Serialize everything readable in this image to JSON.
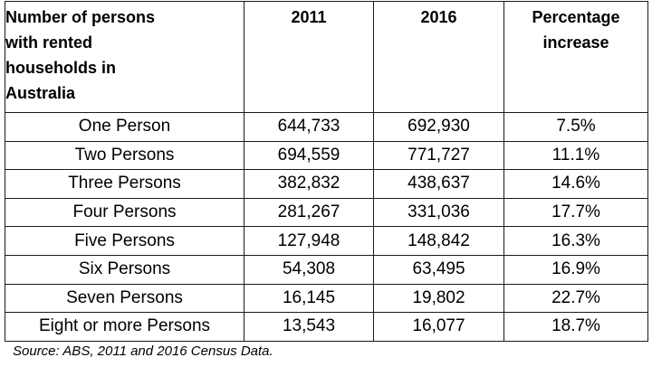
{
  "chart_data": {
    "type": "table",
    "columns": [
      [
        "Number of persons",
        "with rented",
        "households in",
        "Australia"
      ],
      [
        "2011"
      ],
      [
        "2016"
      ],
      [
        "Percentage",
        "increase"
      ]
    ],
    "rows": [
      {
        "label": "One Person",
        "y2011": "644,733",
        "y2016": "692,930",
        "pct": "7.5%"
      },
      {
        "label": "Two Persons",
        "y2011": "694,559",
        "y2016": "771,727",
        "pct": "11.1%"
      },
      {
        "label": "Three Persons",
        "y2011": "382,832",
        "y2016": "438,637",
        "pct": "14.6%"
      },
      {
        "label": "Four Persons",
        "y2011": "281,267",
        "y2016": "331,036",
        "pct": "17.7%"
      },
      {
        "label": "Five Persons",
        "y2011": "127,948",
        "y2016": "148,842",
        "pct": "16.3%"
      },
      {
        "label": "Six Persons",
        "y2011": "54,308",
        "y2016": "63,495",
        "pct": "16.9%"
      },
      {
        "label": "Seven Persons",
        "y2011": "16,145",
        "y2016": "19,802",
        "pct": "22.7%"
      },
      {
        "label": "Eight or more Persons",
        "y2011": "13,543",
        "y2016": "16,077",
        "pct": "18.7%"
      }
    ],
    "source": "Source: ABS, 2011 and 2016 Census Data."
  }
}
